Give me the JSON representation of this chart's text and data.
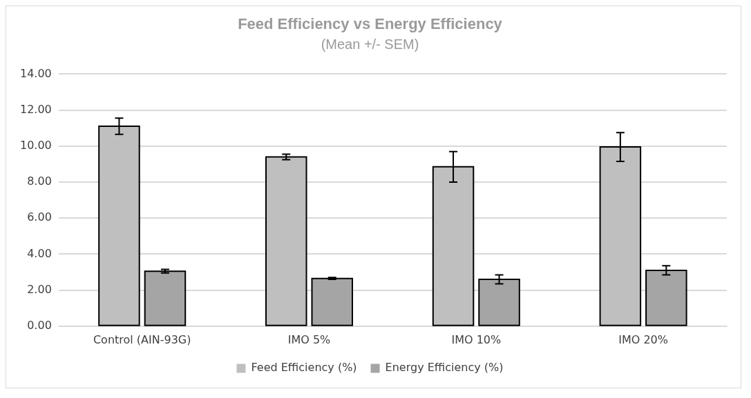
{
  "chart_data": {
    "type": "bar",
    "title": "Feed Efficiency vs Energy Efficiency",
    "subtitle": "(Mean +/- SEM)",
    "categories": [
      "Control (AIN-93G)",
      "IMO 5%",
      "IMO 10%",
      "IMO 20%"
    ],
    "series": [
      {
        "name": "Feed Efficiency (%)",
        "color": "#bfbfbf",
        "values": [
          11.1,
          9.4,
          8.85,
          9.95
        ],
        "errors": [
          0.45,
          0.15,
          0.85,
          0.8
        ]
      },
      {
        "name": "Energy Efficiency (%)",
        "color": "#a5a5a5",
        "values": [
          3.05,
          2.65,
          2.6,
          3.1
        ],
        "errors": [
          0.1,
          0.05,
          0.25,
          0.25
        ]
      }
    ],
    "ylim": [
      0,
      14
    ],
    "yticks": [
      {
        "value": 0,
        "label": "0.00"
      },
      {
        "value": 2,
        "label": "2.00"
      },
      {
        "value": 4,
        "label": "4.00"
      },
      {
        "value": 6,
        "label": "6.00"
      },
      {
        "value": 8,
        "label": "8.00"
      },
      {
        "value": 10,
        "label": "10.00"
      },
      {
        "value": 12,
        "label": "12.00"
      },
      {
        "value": 14,
        "label": "14.00"
      }
    ],
    "grid": "y",
    "legend": "bottom"
  }
}
